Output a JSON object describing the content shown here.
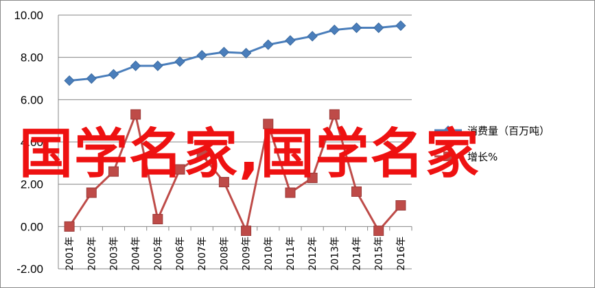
{
  "chart_data": {
    "type": "line",
    "categories": [
      "2001年",
      "2002年",
      "2003年",
      "2004年",
      "2005年",
      "2006年",
      "2007年",
      "2008年",
      "2009年",
      "2010年",
      "2011年",
      "2012年",
      "2013年",
      "2014年",
      "2015年",
      "2016年"
    ],
    "ylim": [
      -2.0,
      10.0
    ],
    "yticks": [
      "-2.00",
      "0.00",
      "2.00",
      "4.00",
      "6.00",
      "8.00",
      "10.00"
    ],
    "grid": true,
    "legend_position": "right",
    "series": [
      {
        "name": "消费量（百万吨）",
        "color": "#4a7ebb",
        "marker": "diamond",
        "values": [
          6.9,
          7.0,
          7.2,
          7.6,
          7.6,
          7.8,
          8.1,
          8.25,
          8.2,
          8.6,
          8.8,
          9.0,
          9.3,
          9.4,
          9.4,
          9.5
        ]
      },
      {
        "name": "增长%",
        "color": "#be4b48",
        "marker": "square",
        "values": [
          0.0,
          1.6,
          2.6,
          5.3,
          0.35,
          2.7,
          3.4,
          2.1,
          -0.2,
          4.85,
          1.6,
          2.3,
          5.3,
          1.65,
          -0.2,
          1.0
        ]
      }
    ]
  },
  "watermark": {
    "text": "国学名家,国学名家"
  }
}
